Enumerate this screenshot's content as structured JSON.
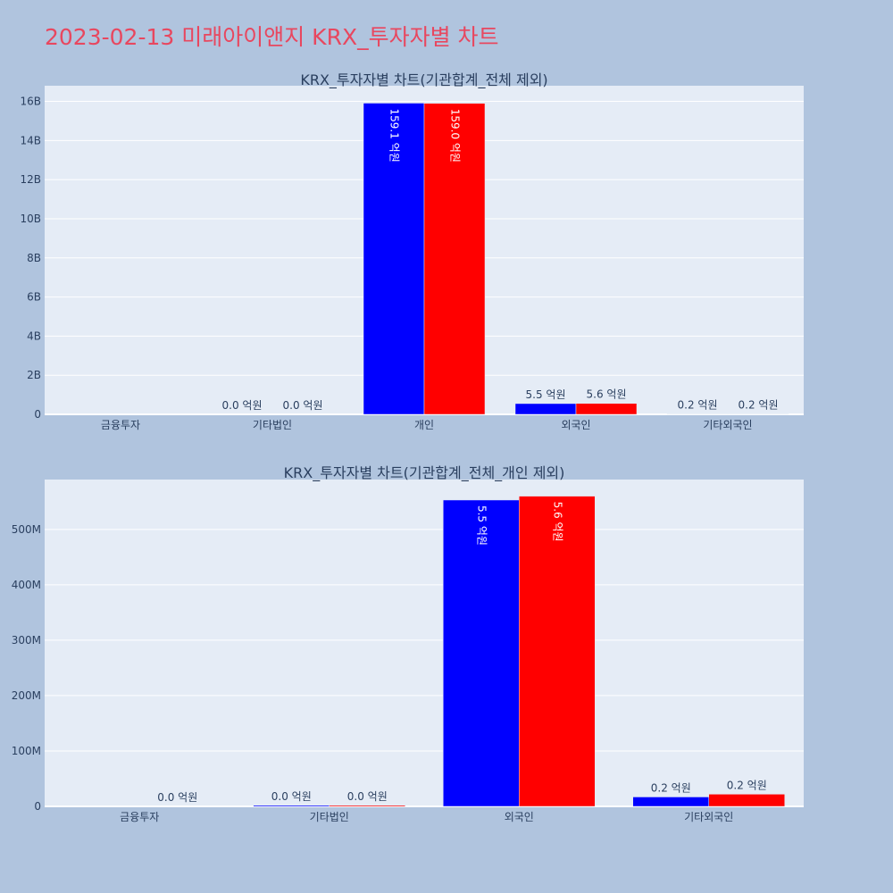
{
  "page": {
    "title": "2023-02-13 미래아이앤지 KRX_투자자별 차트"
  },
  "colors": {
    "series1": "#0000ff",
    "series2": "#ff0000",
    "plot_bg": "#e5ecf6",
    "paper_bg": "#b0c4de",
    "text": "#2a3f5f"
  },
  "chart_data": [
    {
      "type": "bar",
      "title": "KRX_투자자별 차트(기관합계_전체 제외)",
      "categories": [
        "금융투자",
        "기타법인",
        "개인",
        "외국인",
        "기타외국인"
      ],
      "ylim": [
        0,
        16800000000
      ],
      "yticks": [
        0,
        2000000000,
        4000000000,
        6000000000,
        8000000000,
        10000000000,
        12000000000,
        14000000000,
        16000000000
      ],
      "ytick_labels": [
        "0",
        "2B",
        "4B",
        "6B",
        "8B",
        "10B",
        "12B",
        "14B",
        "16B"
      ],
      "grid": true,
      "series": [
        {
          "values": [
            0,
            0,
            15910000000,
            550000000,
            20000000
          ],
          "labels": [
            "",
            "0.0 억원",
            "159.1 억원",
            "5.5 억원",
            "0.2 억원"
          ]
        },
        {
          "values": [
            0,
            0,
            15900000000,
            560000000,
            20000000
          ],
          "labels": [
            "",
            "0.0 억원",
            "159.0 억원",
            "5.6 억원",
            "0.2 억원"
          ]
        }
      ]
    },
    {
      "type": "bar",
      "title": "KRX_투자자별 차트(기관합계_전체_개인 제외)",
      "categories": [
        "금융투자",
        "기타법인",
        "외국인",
        "기타외국인"
      ],
      "ylim": [
        0,
        590000000
      ],
      "yticks": [
        0,
        100000000,
        200000000,
        300000000,
        400000000,
        500000000
      ],
      "ytick_labels": [
        "0",
        "100M",
        "200M",
        "300M",
        "400M",
        "500M"
      ],
      "grid": true,
      "series": [
        {
          "values": [
            0,
            2000000,
            553000000,
            17000000
          ],
          "labels": [
            "",
            "0.0 억원",
            "5.5 억원",
            "0.2 억원"
          ]
        },
        {
          "values": [
            0,
            2000000,
            560000000,
            22000000
          ],
          "labels": [
            "0.0 억원",
            "0.0 억원",
            "5.6 억원",
            "0.2 억원"
          ]
        }
      ]
    }
  ]
}
